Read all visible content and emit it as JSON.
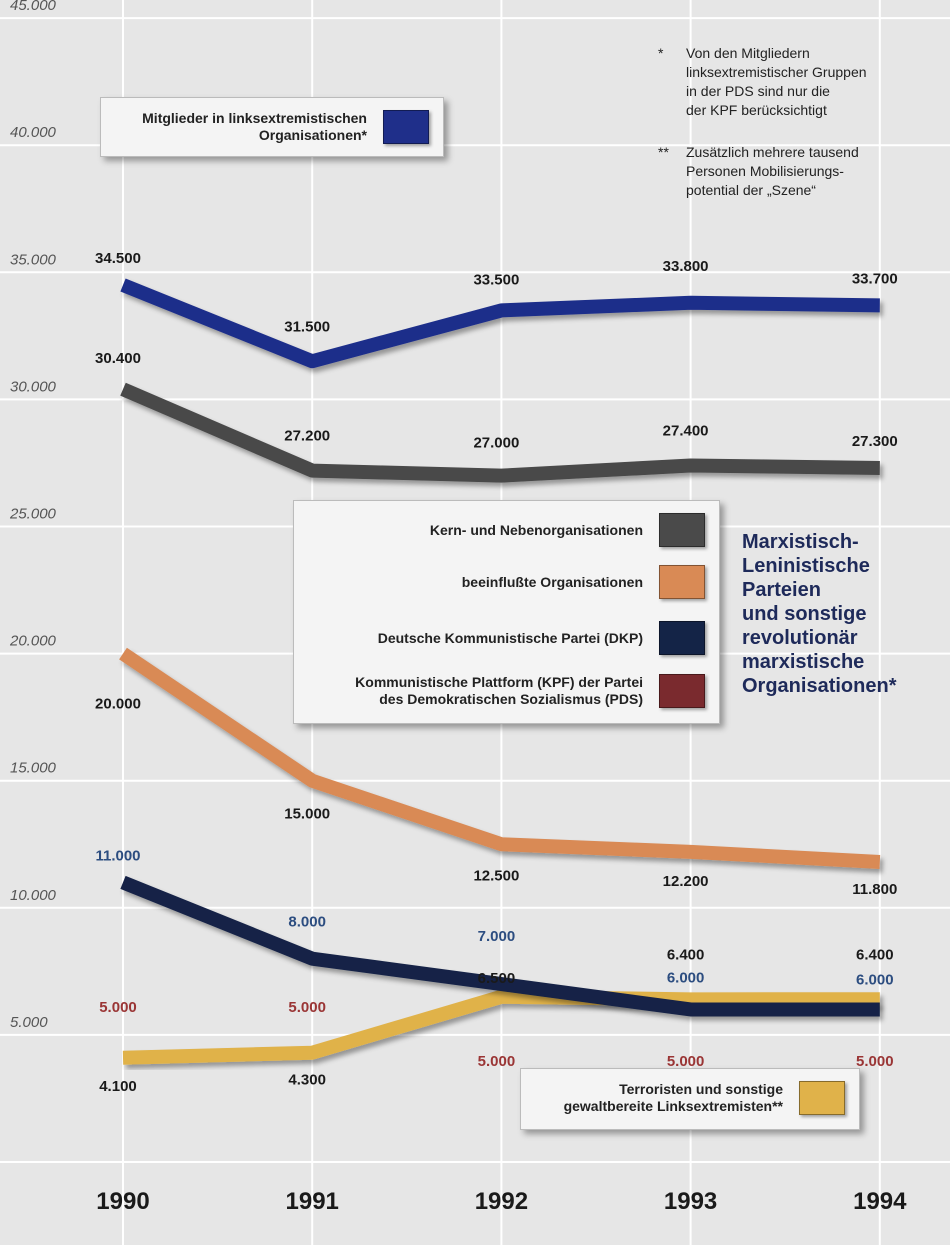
{
  "chart_data": {
    "type": "line",
    "x": [
      "1990",
      "1991",
      "1992",
      "1993",
      "1994"
    ],
    "yticks": [
      "45.000",
      "40.000",
      "35.000",
      "30.000",
      "25.000",
      "20.000",
      "15.000",
      "10.000",
      "5.000"
    ],
    "ylim": [
      0,
      45000
    ],
    "grid": true,
    "title": "Marxistisch-Leninistische Parteien und sonstige revolutionär marxistische Organisationen*",
    "series": [
      {
        "name": "Mitglieder in linksextremistischen Organisationen*",
        "color": "#1f2f8a",
        "values": [
          34500,
          31500,
          33500,
          33800,
          33700
        ],
        "labels": [
          "34.500",
          "31.500",
          "33.500",
          "33.800",
          "33.700"
        ],
        "label_color": "#1a1a1a"
      },
      {
        "name": "Kern- und Nebenorganisationen",
        "color": "#4a4a4a",
        "values": [
          30400,
          27200,
          27000,
          27400,
          27300
        ],
        "labels": [
          "30.400",
          "27.200",
          "27.000",
          "27.400",
          "27.300"
        ],
        "label_color": "#1a1a1a"
      },
      {
        "name": "beeinflußte Organisationen",
        "color": "#d98a55",
        "values": [
          20000,
          15000,
          12500,
          12200,
          11800
        ],
        "labels": [
          "20.000",
          "15.000",
          "12.500",
          "12.200",
          "11.800"
        ],
        "label_color": "#1a1a1a"
      },
      {
        "name": "Deutsche Kommunistische Partei (DKP)",
        "color": "#142447",
        "values": [
          11000,
          8000,
          7000,
          6000,
          6000
        ],
        "labels": [
          "11.000",
          "8.000",
          "7.000",
          "6.000",
          "6.000"
        ],
        "label_color": "#2c4d80"
      },
      {
        "name": "Kommunistische Plattform (KPF) der Partei des Demokratischen Sozialismus (PDS)",
        "color": "#7a2a2e",
        "values": [
          5000,
          5000,
          5000,
          5000,
          5000
        ],
        "labels": [
          "5.000",
          "5.000",
          "5.000",
          "5.000",
          "5.000"
        ],
        "label_color": "#9a3535"
      },
      {
        "name": "Terroristen und sonstige gewaltbereite Linksextremisten**",
        "color": "#e0b24a",
        "values": [
          4100,
          4300,
          6500,
          6400,
          6400
        ],
        "labels": [
          "4.100",
          "4.300",
          "6.500",
          "6.400",
          "6.400"
        ],
        "label_color": "#1a1a1a"
      }
    ]
  },
  "legend": {
    "total_line1": "Mitglieder in linksextremistischen",
    "total_line2": "Organisationen*",
    "kern": "Kern- und Nebenorganisationen",
    "beeinflusst": "beeinflußte Organisationen",
    "dkp": "Deutsche Kommunistische Partei (DKP)",
    "kpf_line1": "Kommunistische Plattform (KPF) der Partei",
    "kpf_line2": "des Demokratischen Sozialismus (PDS)",
    "terror_line1": "Terroristen und sonstige",
    "terror_line2": "gewaltbereite Linksextremisten**"
  },
  "title_lines": [
    "Marxistisch-",
    "Leninistische",
    "Parteien",
    "und sonstige",
    "revolutionär",
    "marxistische",
    "Organisationen*"
  ],
  "notes": {
    "star1": "*",
    "note1_lines": [
      "Von den Mitgliedern",
      "linksextremistischer Gruppen",
      "in der PDS sind nur die",
      "der KPF berücksichtigt"
    ],
    "star2": "**",
    "note2_lines": [
      "Zusätzlich mehrere tausend",
      "Personen Mobilisierungs-",
      "potential der „Szene“"
    ]
  },
  "colors": {
    "background": "#e6e6e6",
    "gridline": "#ffffff",
    "title": "#1e2a5a"
  }
}
